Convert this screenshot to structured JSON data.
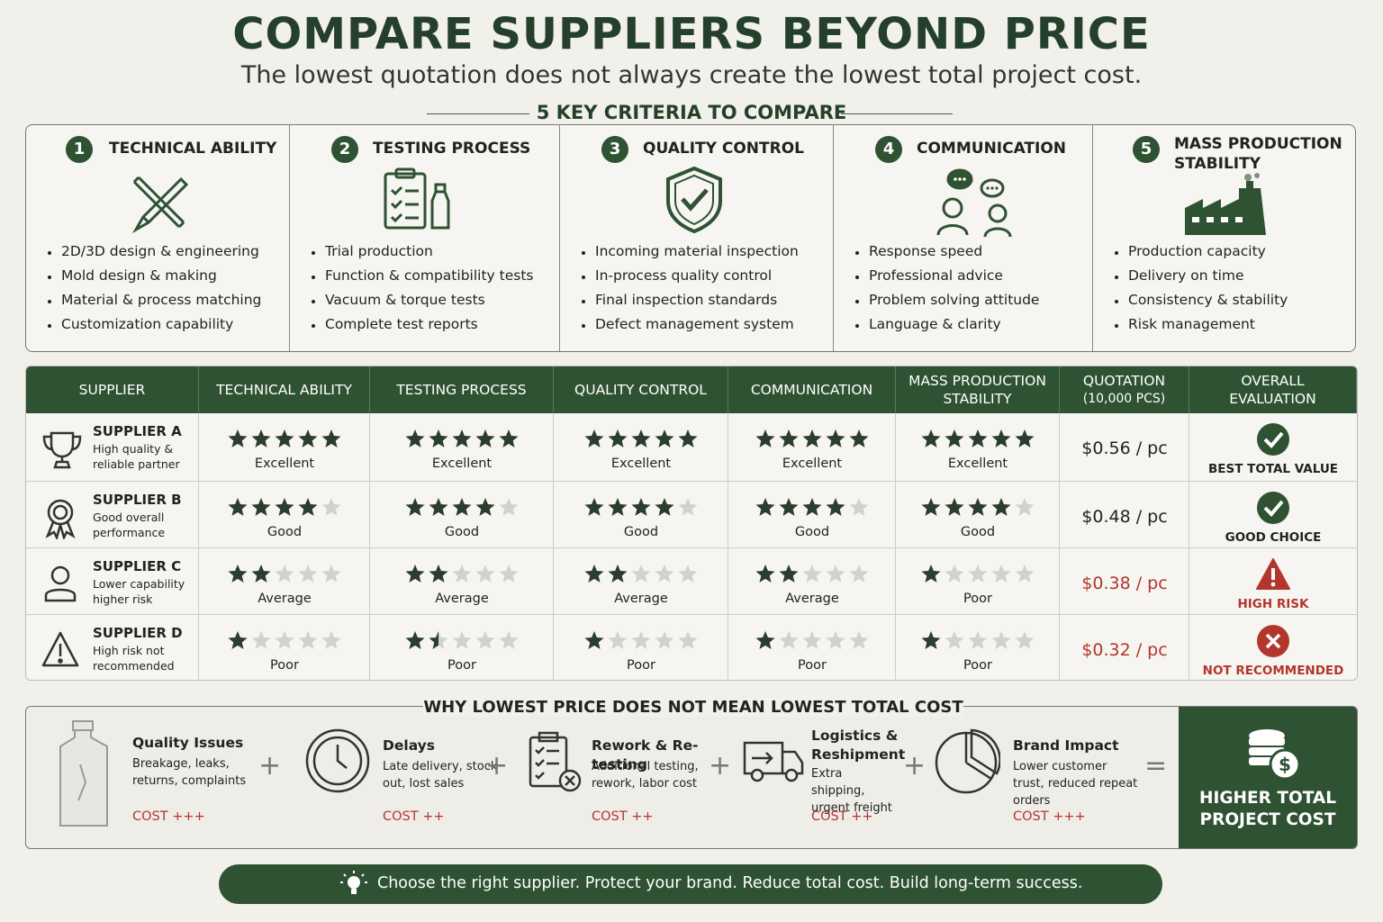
{
  "header": {
    "title": "COMPARE SUPPLIERS BEYOND PRICE",
    "subtitle": "The lowest quotation does not always create the lowest total project cost."
  },
  "criteria": {
    "heading": "5 KEY CRITERIA TO COMPARE",
    "items": [
      {
        "number": "1",
        "title": "TECHNICAL ABILITY",
        "bullets": [
          "2D/3D design & engineering",
          "Mold design & making",
          "Material & process matching",
          "Customization capability"
        ]
      },
      {
        "number": "2",
        "title": "TESTING PROCESS",
        "bullets": [
          "Trial production",
          "Function & compatibility tests",
          "Vacuum & torque tests",
          "Complete test reports"
        ]
      },
      {
        "number": "3",
        "title": "QUALITY CONTROL",
        "bullets": [
          "Incoming material inspection",
          "In-process quality control",
          "Final inspection standards",
          "Defect management system"
        ]
      },
      {
        "number": "4",
        "title": "COMMUNICATION",
        "bullets": [
          "Response speed",
          "Professional advice",
          "Problem solving attitude",
          "Language & clarity"
        ]
      },
      {
        "number": "5",
        "title": "MASS PRODUCTION STABILITY",
        "bullets": [
          "Production capacity",
          "Delivery on time",
          "Consistency & stability",
          "Risk management"
        ]
      }
    ]
  },
  "table": {
    "headers": [
      "SUPPLIER",
      "TECHNICAL ABILITY",
      "TESTING PROCESS",
      "QUALITY CONTROL",
      "COMMUNICATION",
      "MASS PRODUCTION STABILITY",
      "QUOTATION",
      "OVERALL EVALUATION"
    ],
    "quotation_note": "(10,000 PCS)",
    "rows": [
      {
        "name": "SUPPLIER A",
        "desc": "High quality & reliable partner",
        "ratings": [
          {
            "stars": 5,
            "label": "Excellent"
          },
          {
            "stars": 5,
            "label": "Excellent"
          },
          {
            "stars": 5,
            "label": "Excellent"
          },
          {
            "stars": 5,
            "label": "Excellent"
          },
          {
            "stars": 5,
            "label": "Excellent"
          }
        ],
        "quotation": "$0.56 / pc",
        "evaluation": "BEST TOTAL VALUE",
        "color": "#2f5233"
      },
      {
        "name": "SUPPLIER B",
        "desc": "Good overall performance",
        "ratings": [
          {
            "stars": 4,
            "label": "Good"
          },
          {
            "stars": 4,
            "label": "Good"
          },
          {
            "stars": 4,
            "label": "Good"
          },
          {
            "stars": 4,
            "label": "Good"
          },
          {
            "stars": 4,
            "label": "Good"
          }
        ],
        "quotation": "$0.48 / pc",
        "evaluation": "GOOD CHOICE",
        "color": "#2f5233"
      },
      {
        "name": "SUPPLIER C",
        "desc": "Lower capability higher risk",
        "ratings": [
          {
            "stars": 2,
            "label": "Average"
          },
          {
            "stars": 2,
            "label": "Average"
          },
          {
            "stars": 2,
            "label": "Average"
          },
          {
            "stars": 2,
            "label": "Average"
          },
          {
            "stars": 1,
            "label": "Poor"
          }
        ],
        "quotation": "$0.38 / pc",
        "evaluation": "HIGH RISK",
        "color": "#b3362c"
      },
      {
        "name": "SUPPLIER D",
        "desc": "High risk not recommended",
        "ratings": [
          {
            "stars": 1,
            "label": "Poor"
          },
          {
            "stars": 1.5,
            "label": "Poor"
          },
          {
            "stars": 1,
            "label": "Poor"
          },
          {
            "stars": 1,
            "label": "Poor"
          },
          {
            "stars": 1,
            "label": "Poor"
          }
        ],
        "quotation": "$0.32 / pc",
        "evaluation": "NOT RECOMMENDED",
        "color": "#b3362c"
      }
    ]
  },
  "costs": {
    "heading": "WHY LOWEST PRICE DOES NOT MEAN LOWEST TOTAL COST",
    "items": [
      {
        "title": "Quality Issues",
        "desc": "Breakage, leaks, returns, complaints",
        "cost": "COST +++"
      },
      {
        "title": "Delays",
        "desc": "Late delivery, stock out, lost sales",
        "cost": "COST ++"
      },
      {
        "title": "Rework & Re-testing",
        "desc": "Additional testing, rework, labor cost",
        "cost": "COST ++"
      },
      {
        "title": "Logistics & Reshipment",
        "desc": "Extra shipping, urgent freight",
        "cost": "COST ++"
      },
      {
        "title": "Brand Impact",
        "desc": "Lower customer trust, reduced repeat orders",
        "cost": "COST +++"
      }
    ],
    "total": "HIGHER TOTAL PROJECT COST"
  },
  "footer": {
    "text": "Choose the right supplier. Protect your brand. Reduce total cost. Build long-term success."
  }
}
